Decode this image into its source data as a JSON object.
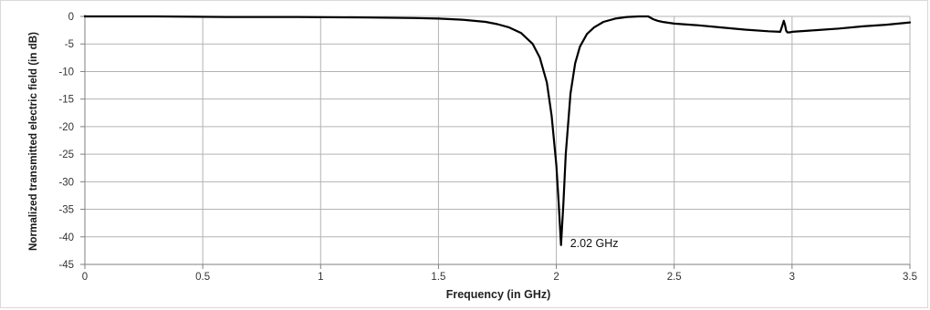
{
  "chart_data": {
    "type": "line",
    "title": "",
    "xlabel": "Frequency (in GHz)",
    "ylabel": "Normalized transmitted electric field (in dB)",
    "xlim": [
      0,
      3.5
    ],
    "ylim": [
      -45,
      0
    ],
    "x_ticks": [
      0,
      0.5,
      1,
      1.5,
      2,
      2.5,
      3,
      3.5
    ],
    "x_tick_labels": [
      "0",
      "0.5",
      "1",
      "1.5",
      "2",
      "2.5",
      "3",
      "3.5"
    ],
    "y_ticks": [
      0,
      -5,
      -10,
      -15,
      -20,
      -25,
      -30,
      -35,
      -40,
      -45
    ],
    "y_tick_labels": [
      "0",
      "-5",
      "-10",
      "-15",
      "-20",
      "-25",
      "-30",
      "-35",
      "-40",
      "-45"
    ],
    "grid": true,
    "legend": "none",
    "colors": {
      "line": "#000000",
      "grid": "#b3b3b3",
      "axis": "#7f7f7f"
    },
    "series": [
      {
        "x": [
          0,
          0.3,
          0.6,
          0.9,
          1.2,
          1.4,
          1.5,
          1.6,
          1.7,
          1.75,
          1.8,
          1.85,
          1.9,
          1.93,
          1.96,
          1.98,
          2.0,
          2.01,
          2.02,
          2.03,
          2.04,
          2.06,
          2.08,
          2.1,
          2.13,
          2.16,
          2.2,
          2.25,
          2.3,
          2.35,
          2.39,
          2.41,
          2.43,
          2.45,
          2.5,
          2.6,
          2.7,
          2.8,
          2.9,
          2.95,
          2.96,
          2.965,
          2.97,
          2.975,
          2.98,
          2.99,
          3.0,
          3.1,
          3.2,
          3.3,
          3.4,
          3.5
        ],
        "y": [
          0,
          0,
          -0.1,
          -0.1,
          -0.2,
          -0.3,
          -0.4,
          -0.6,
          -1.0,
          -1.4,
          -2.0,
          -3.0,
          -5.0,
          -7.5,
          -12,
          -18,
          -27,
          -34,
          -41.5,
          -34,
          -25,
          -14,
          -8.5,
          -5.5,
          -3.2,
          -2.0,
          -1.0,
          -0.4,
          -0.1,
          0,
          0,
          -0.5,
          -0.8,
          -1.0,
          -1.3,
          -1.6,
          -2.0,
          -2.4,
          -2.7,
          -2.8,
          -1.5,
          -0.8,
          -1.5,
          -2.6,
          -2.9,
          -2.9,
          -2.8,
          -2.5,
          -2.2,
          -1.8,
          -1.5,
          -1.1
        ]
      }
    ],
    "annotations": [
      {
        "text": "2.02 GHz",
        "x": 2.02,
        "y": -41.5
      }
    ]
  }
}
